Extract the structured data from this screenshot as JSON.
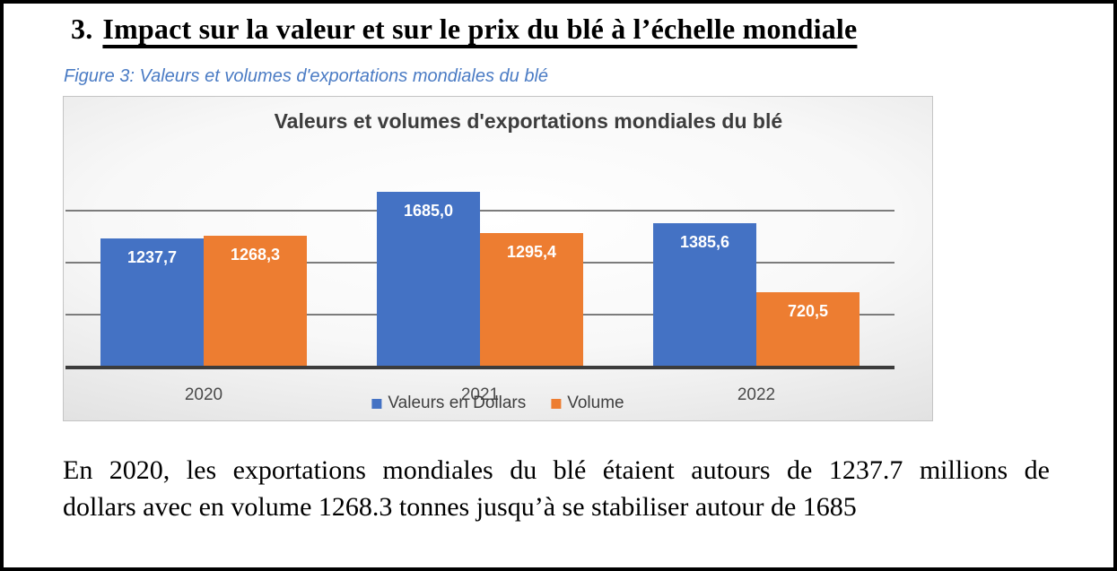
{
  "page": {
    "heading_number": "3.",
    "heading_text": "Impact sur la valeur et sur le prix du blé à l’échelle mondiale",
    "figure_caption": "Figure 3: Valeurs et volumes d'exportations mondiales du blé",
    "body_lines": [
      "En 2020, les exportations mondiales du blé étaient autours de 1237.7 millions de",
      "dollars avec en volume 1268.3 tonnes jusqu’à se stabiliser autour de 1685"
    ]
  },
  "chart_data": {
    "type": "bar",
    "title": "Valeurs et volumes d'exportations mondiales du blé",
    "categories": [
      "2020",
      "2021",
      "2022"
    ],
    "series": [
      {
        "name": "Valeurs en Dollars",
        "color": "#4472C4",
        "values": [
          1237.7,
          1685.0,
          1385.6
        ],
        "labels": [
          "1237,7",
          "1685,0",
          "1385,6"
        ]
      },
      {
        "name": "Volume",
        "color": "#ED7D31",
        "values": [
          1268.3,
          1295.4,
          720.5
        ],
        "labels": [
          "1268,3",
          "1295,4",
          "720,5"
        ]
      }
    ],
    "xlabel": "",
    "ylabel": "",
    "ylim": [
      0,
      1800
    ],
    "gridlines": [
      500,
      1000,
      1500
    ],
    "grid": true,
    "legend_position": "bottom"
  }
}
